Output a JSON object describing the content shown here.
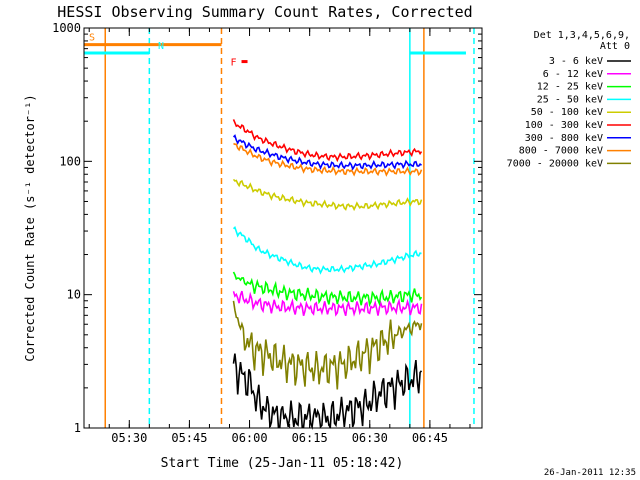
{
  "chart_data": {
    "type": "line",
    "title": "HESSI Observing Summary Count Rates, Corrected",
    "xlabel": "Start Time (25-Jan-11 05:18:42)",
    "ylabel": "Corrected Count Rate (s⁻¹ detector⁻¹)",
    "yscale": "log",
    "ylim": [
      1,
      1000
    ],
    "xlim": [
      "05:18:42",
      "06:58:00"
    ],
    "x_ticks": [
      "05:30",
      "05:45",
      "06:00",
      "06:15",
      "06:30",
      "06:45"
    ],
    "y_ticks": [
      "1",
      "10",
      "100",
      "1000"
    ],
    "legend_header": [
      "Det 1,3,4,5,6,9,",
      "Att 0"
    ],
    "legend_position": "top-right",
    "timestamp": "26-Jan-2011 12:35",
    "series": [
      {
        "name": "3 - 6 keV",
        "color": "#000000",
        "x": [
          "05:56",
          "05:58",
          "06:00",
          "06:02",
          "06:05",
          "06:08",
          "06:11",
          "06:14",
          "06:17",
          "06:20",
          "06:23",
          "06:26",
          "06:29",
          "06:32",
          "06:35",
          "06:38",
          "06:41",
          "06:43"
        ],
        "values": [
          3,
          2.5,
          2.2,
          1.6,
          1.3,
          1.2,
          1.2,
          1.2,
          1.2,
          1.2,
          1.3,
          1.4,
          1.5,
          1.8,
          2.0,
          2.2,
          2.4,
          2.6
        ]
      },
      {
        "name": "6 - 12 keV",
        "color": "#ff00ff",
        "x": [
          "05:56",
          "05:58",
          "06:00",
          "06:02",
          "06:05",
          "06:08",
          "06:11",
          "06:14",
          "06:17",
          "06:20",
          "06:23",
          "06:26",
          "06:29",
          "06:32",
          "06:35",
          "06:38",
          "06:41",
          "06:43"
        ],
        "values": [
          10,
          9.5,
          9,
          8.6,
          8.3,
          8.1,
          8,
          7.9,
          7.9,
          7.9,
          7.9,
          7.9,
          7.9,
          8,
          8,
          8,
          8,
          8
        ]
      },
      {
        "name": "12 - 25 keV",
        "color": "#00ff00",
        "x": [
          "05:56",
          "05:58",
          "06:00",
          "06:02",
          "06:05",
          "06:08",
          "06:11",
          "06:14",
          "06:17",
          "06:20",
          "06:23",
          "06:26",
          "06:29",
          "06:32",
          "06:35",
          "06:38",
          "06:41",
          "06:43"
        ],
        "values": [
          14,
          13,
          12,
          11.5,
          11,
          10.5,
          10.2,
          10,
          9.8,
          9.6,
          9.6,
          9.5,
          9.5,
          9.5,
          9.6,
          9.8,
          10,
          10
        ]
      },
      {
        "name": "25 - 50 keV",
        "color": "#00ffff",
        "x": [
          "05:56",
          "05:58",
          "06:00",
          "06:02",
          "06:05",
          "06:08",
          "06:11",
          "06:14",
          "06:17",
          "06:20",
          "06:23",
          "06:26",
          "06:29",
          "06:32",
          "06:35",
          "06:38",
          "06:41",
          "06:43"
        ],
        "values": [
          31,
          28,
          25,
          22,
          20,
          18.5,
          17,
          16,
          15.5,
          15.5,
          15.5,
          16,
          16.5,
          17,
          18,
          19,
          20,
          20.5
        ]
      },
      {
        "name": "50 - 100 keV",
        "color": "#cccc00",
        "x": [
          "05:56",
          "05:58",
          "06:00",
          "06:02",
          "06:05",
          "06:08",
          "06:11",
          "06:14",
          "06:17",
          "06:20",
          "06:23",
          "06:26",
          "06:29",
          "06:32",
          "06:35",
          "06:38",
          "06:41",
          "06:43"
        ],
        "values": [
          72,
          68,
          64,
          60,
          56,
          53,
          51,
          49,
          48,
          47,
          46,
          46,
          46,
          47,
          48,
          49,
          50,
          50
        ]
      },
      {
        "name": "100 - 300 keV",
        "color": "#ff0000",
        "x": [
          "05:56",
          "05:58",
          "06:00",
          "06:02",
          "06:05",
          "06:08",
          "06:11",
          "06:14",
          "06:17",
          "06:20",
          "06:23",
          "06:26",
          "06:29",
          "06:32",
          "06:35",
          "06:38",
          "06:41",
          "06:43"
        ],
        "values": [
          195,
          180,
          165,
          150,
          138,
          128,
          120,
          114,
          110,
          108,
          108,
          109,
          110,
          112,
          114,
          116,
          118,
          120
        ]
      },
      {
        "name": "300 - 800 keV",
        "color": "#0000ff",
        "x": [
          "05:56",
          "05:58",
          "06:00",
          "06:02",
          "06:05",
          "06:08",
          "06:11",
          "06:14",
          "06:17",
          "06:20",
          "06:23",
          "06:26",
          "06:29",
          "06:32",
          "06:35",
          "06:38",
          "06:41",
          "06:43"
        ],
        "values": [
          150,
          140,
          130,
          122,
          114,
          107,
          102,
          98,
          95,
          94,
          93,
          93,
          93,
          94,
          94,
          95,
          95,
          95
        ]
      },
      {
        "name": "800 - 7000 keV",
        "color": "#ff8000",
        "x": [
          "05:56",
          "05:58",
          "06:00",
          "06:02",
          "06:05",
          "06:08",
          "06:11",
          "06:14",
          "06:17",
          "06:20",
          "06:23",
          "06:26",
          "06:29",
          "06:32",
          "06:35",
          "06:38",
          "06:41",
          "06:43"
        ],
        "values": [
          135,
          125,
          116,
          108,
          100,
          95,
          91,
          88,
          86,
          85,
          84,
          84,
          84,
          84,
          84,
          84,
          84,
          84
        ]
      },
      {
        "name": "7000 - 20000 keV",
        "color": "#808000",
        "x": [
          "05:56",
          "05:58",
          "06:00",
          "06:02",
          "06:05",
          "06:08",
          "06:11",
          "06:14",
          "06:17",
          "06:20",
          "06:23",
          "06:26",
          "06:29",
          "06:32",
          "06:35",
          "06:38",
          "06:41",
          "06:43"
        ],
        "values": [
          8,
          5.5,
          4.2,
          3.8,
          3.5,
          3.2,
          3.0,
          2.9,
          2.8,
          2.9,
          3.0,
          3.3,
          3.7,
          4.2,
          4.8,
          5.3,
          5.8,
          6.2
        ]
      }
    ],
    "status_bars": [
      {
        "label": "S",
        "color": "#ff8000",
        "start": "05:18:42",
        "end": "05:53:00",
        "y": 750
      },
      {
        "label": "N",
        "color": "#00ffff",
        "start": "05:18:42",
        "end": "05:35:00",
        "y": 650
      },
      {
        "label": "F",
        "color": "#ff0000",
        "start": "05:58:00",
        "end": "05:59:30",
        "y": 560
      },
      {
        "label": "",
        "color": "#00ffff",
        "start": "06:40:00",
        "end": "06:54:00",
        "y": 650
      }
    ],
    "vertical_markers": [
      {
        "time": "05:24:00",
        "color": "#ff8000",
        "style": "solid"
      },
      {
        "time": "05:35:00",
        "color": "#00ffff",
        "style": "dashed"
      },
      {
        "time": "05:53:00",
        "color": "#ff8000",
        "style": "dashed"
      },
      {
        "time": "06:40:00",
        "color": "#00ffff",
        "style": "solid"
      },
      {
        "time": "06:43:30",
        "color": "#ff8000",
        "style": "solid"
      },
      {
        "time": "06:56:00",
        "color": "#00ffff",
        "style": "dashed"
      }
    ]
  }
}
